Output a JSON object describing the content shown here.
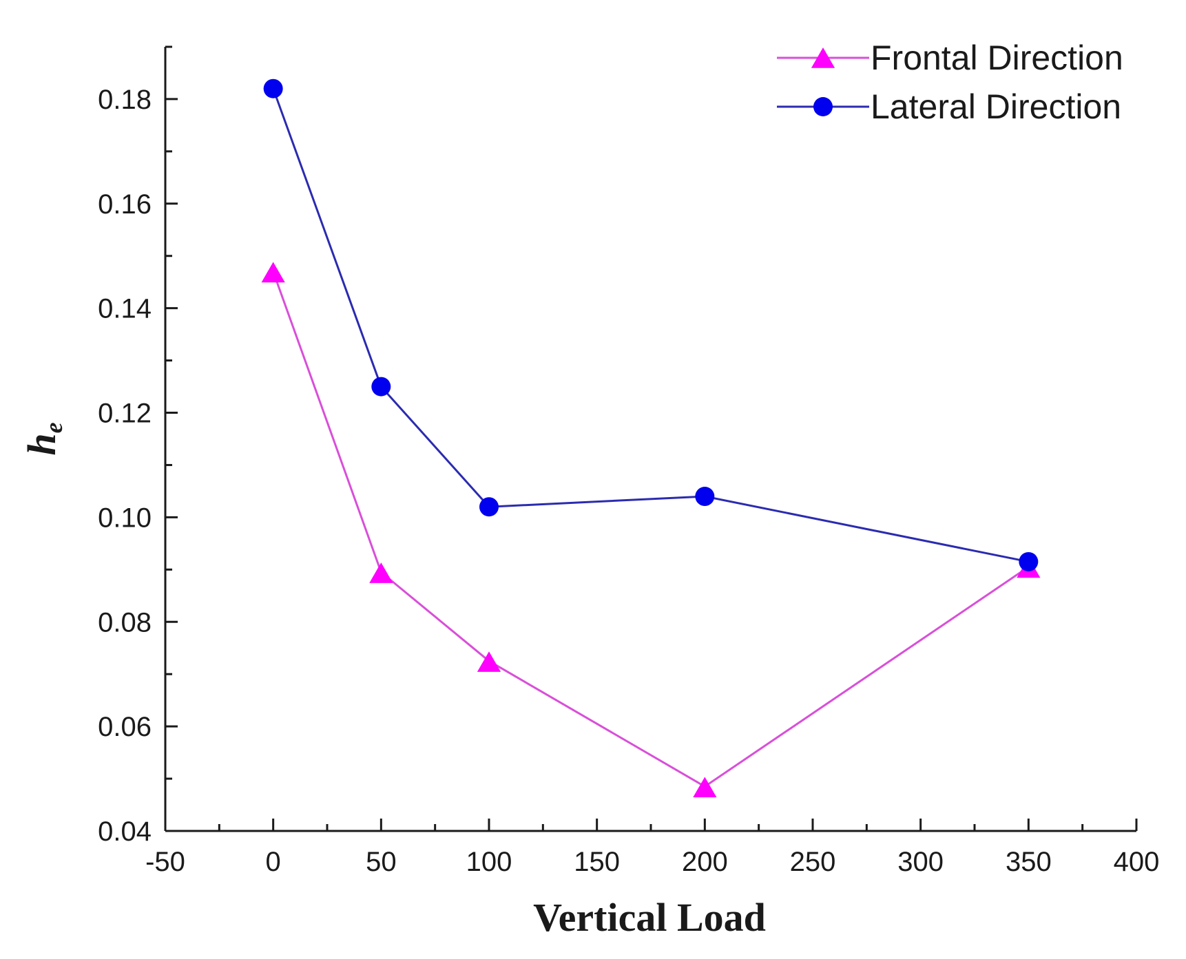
{
  "chart_data": {
    "type": "line",
    "title": "",
    "xlabel": "Vertical Load",
    "ylabel": {
      "base": "h",
      "subscript": "e"
    },
    "xlim": [
      -50,
      400
    ],
    "ylim": [
      0.04,
      0.19
    ],
    "xticks": [
      -50,
      0,
      50,
      100,
      150,
      200,
      250,
      300,
      350,
      400
    ],
    "xtick_labels": [
      "-50",
      "0",
      "50",
      "100",
      "150",
      "200",
      "250",
      "300",
      "350",
      "400"
    ],
    "yticks": [
      0.04,
      0.06,
      0.08,
      0.1,
      0.12,
      0.14,
      0.16,
      0.18
    ],
    "ytick_labels": [
      "0.04",
      "0.06",
      "0.08",
      "0.10",
      "0.12",
      "0.14",
      "0.16",
      "0.18"
    ],
    "grid": false,
    "legend_position": "top-right",
    "x": [
      0,
      50,
      100,
      200,
      350
    ],
    "series": [
      {
        "name": "Frontal Direction",
        "color": "#ff00ff",
        "line_color": "#d94fd9",
        "marker": "triangle",
        "values": [
          0.147,
          0.0895,
          0.0725,
          0.0485,
          0.0905
        ]
      },
      {
        "name": "Lateral Direction",
        "color": "#0000ee",
        "line_color": "#2b2bb0",
        "marker": "circle",
        "values": [
          0.182,
          0.125,
          0.102,
          0.104,
          0.0915
        ]
      }
    ]
  }
}
